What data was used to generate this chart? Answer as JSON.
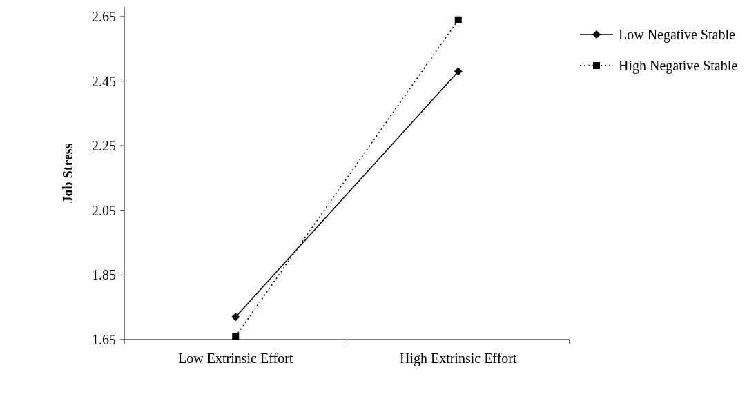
{
  "chart_data": {
    "type": "line",
    "ylabel": "Job Stress",
    "categories": [
      "Low Extrinsic Effort",
      "High Extrinsic Effort"
    ],
    "series": [
      {
        "name": "Low Negative Stable",
        "color": "#000000",
        "values": [
          1.72,
          2.48
        ],
        "marker": "diamond",
        "line_style": "solid"
      },
      {
        "name": "High Negative Stable",
        "color": "#000000",
        "values": [
          1.66,
          2.64
        ],
        "marker": "square",
        "line_style": "dotted"
      }
    ],
    "ylim": [
      1.65,
      2.68
    ],
    "yticks": [
      1.65,
      1.85,
      2.05,
      2.25,
      2.45,
      2.65
    ],
    "grid": false,
    "legend": "top right"
  }
}
